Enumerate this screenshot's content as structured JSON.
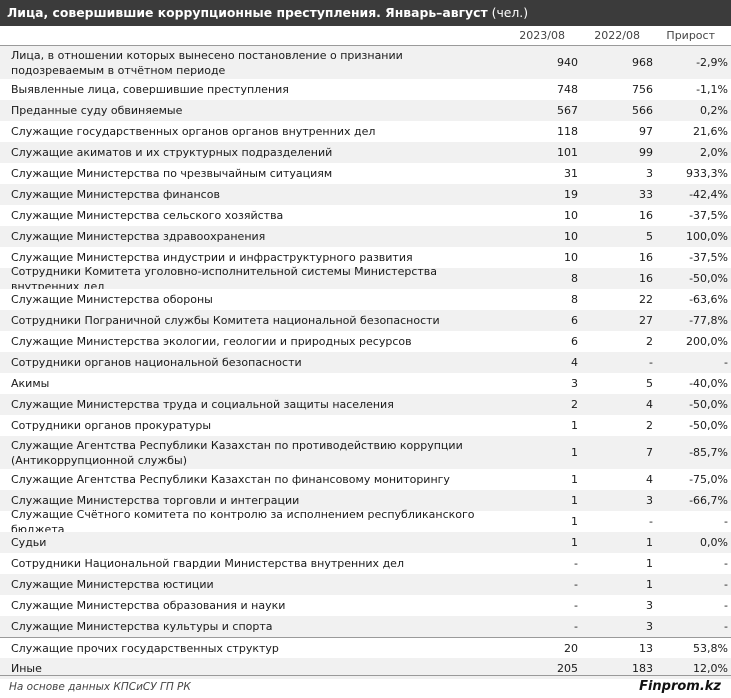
{
  "title": {
    "main": "Лица, совершившие коррупционные преступления. Январь–август",
    "unit": "(чел.)"
  },
  "columns": [
    "2023/08",
    "2022/08",
    "Прирост"
  ],
  "rows": [
    {
      "label": "Лица, в отношении которых вынесено постановление о признании подозреваемым в отчётном периоде",
      "v2023": "940",
      "v2022": "968",
      "growth": "-2,9%"
    },
    {
      "label": "Выявленные лица, совершившие преступления",
      "v2023": "748",
      "v2022": "756",
      "growth": "-1,1%"
    },
    {
      "label": "Преданные суду обвиняемые",
      "v2023": "567",
      "v2022": "566",
      "growth": "0,2%"
    },
    {
      "label": "Служащие государственных органов органов внутренних дел",
      "v2023": "118",
      "v2022": "97",
      "growth": "21,6%"
    },
    {
      "label": "Служащие акиматов и их структурных подразделений",
      "v2023": "101",
      "v2022": "99",
      "growth": "2,0%"
    },
    {
      "label": "Служащие Министерства по чрезвычайным ситуациям",
      "v2023": "31",
      "v2022": "3",
      "growth": "933,3%"
    },
    {
      "label": "Служащие Министерства финансов",
      "v2023": "19",
      "v2022": "33",
      "growth": "-42,4%"
    },
    {
      "label": "Служащие Министерства сельского хозяйства",
      "v2023": "10",
      "v2022": "16",
      "growth": "-37,5%"
    },
    {
      "label": "Служащие Министерства здравоохранения",
      "v2023": "10",
      "v2022": "5",
      "growth": "100,0%"
    },
    {
      "label": "Служащие Министерства индустрии и инфраструктурного развития",
      "v2023": "10",
      "v2022": "16",
      "growth": "-37,5%"
    },
    {
      "label": "Сотрудники Комитета уголовно-исполнительной системы Министерства внутренних дел",
      "v2023": "8",
      "v2022": "16",
      "growth": "-50,0%"
    },
    {
      "label": "Служащие Министерства обороны",
      "v2023": "8",
      "v2022": "22",
      "growth": "-63,6%"
    },
    {
      "label": "Сотрудники Пограничной службы Комитета национальной безопасности",
      "v2023": "6",
      "v2022": "27",
      "growth": "-77,8%"
    },
    {
      "label": "Служащие Министерства экологии, геологии и природных ресурсов",
      "v2023": "6",
      "v2022": "2",
      "growth": "200,0%"
    },
    {
      "label": "Сотрудники органов национальной безопасности",
      "v2023": "4",
      "v2022": "-",
      "growth": "-"
    },
    {
      "label": "Акимы",
      "v2023": "3",
      "v2022": "5",
      "growth": "-40,0%"
    },
    {
      "label": "Служащие Министерства труда и социальной защиты населения",
      "v2023": "2",
      "v2022": "4",
      "growth": "-50,0%"
    },
    {
      "label": "Сотрудники органов прокуратуры",
      "v2023": "1",
      "v2022": "2",
      "growth": "-50,0%"
    },
    {
      "label": "Служащие Агентства Республики Казахстан по противодействию коррупции (Антикоррупционной службы)",
      "v2023": "1",
      "v2022": "7",
      "growth": "-85,7%"
    },
    {
      "label": "Служащие Агентства Республики Казахстан по финансовому мониторингу",
      "v2023": "1",
      "v2022": "4",
      "growth": "-75,0%"
    },
    {
      "label": "Служащие Министерства торговли и интеграции",
      "v2023": "1",
      "v2022": "3",
      "growth": "-66,7%"
    },
    {
      "label": "Служащие Счётного комитета по контролю за исполнением республиканского бюджета",
      "v2023": "1",
      "v2022": "-",
      "growth": "-"
    },
    {
      "label": "Судьи",
      "v2023": "1",
      "v2022": "1",
      "growth": "0,0%"
    },
    {
      "label": "Сотрудники Национальной гвардии Министерства внутренних дел",
      "v2023": "-",
      "v2022": "1",
      "growth": "-"
    },
    {
      "label": "Служащие Министерства юстиции",
      "v2023": "-",
      "v2022": "1",
      "growth": "-"
    },
    {
      "label": "Служащие Министерства образования и науки",
      "v2023": "-",
      "v2022": "3",
      "growth": "-"
    },
    {
      "label": "Служащие Министерства культуры и спорта",
      "v2023": "-",
      "v2022": "3",
      "growth": "-"
    },
    {
      "label": "Служащие прочих государственных структур",
      "v2023": "20",
      "v2022": "13",
      "growth": "53,8%"
    },
    {
      "label": "Иные",
      "v2023": "205",
      "v2022": "183",
      "growth": "12,0%"
    }
  ],
  "footer": {
    "source": "На основе данных КПСиСУ ГП РК",
    "brand": "Finprom.kz"
  }
}
